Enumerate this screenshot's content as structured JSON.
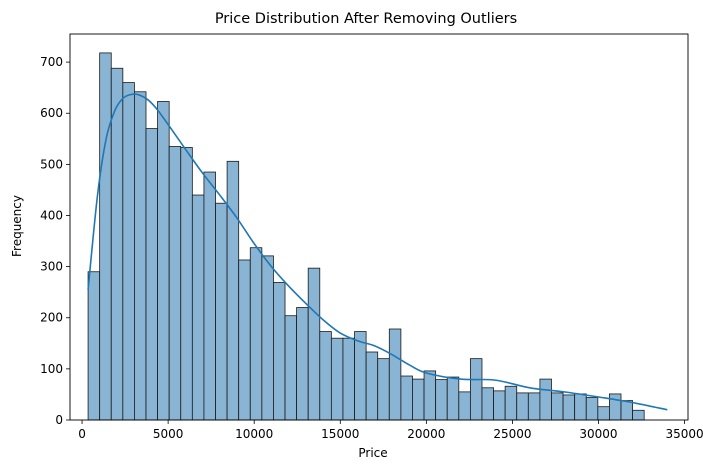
{
  "chart_data": {
    "type": "bar",
    "title": "Price Distribution After Removing Outliers",
    "xlabel": "Price",
    "ylabel": "Frequency",
    "xlim": [
      -700,
      35200
    ],
    "ylim": [
      0,
      755
    ],
    "x_ticks": [
      0,
      5000,
      10000,
      15000,
      20000,
      25000,
      30000,
      35000
    ],
    "y_ticks": [
      0,
      100,
      200,
      300,
      400,
      500,
      600,
      700
    ],
    "bin_start": 350,
    "bin_width": 673,
    "values": [
      290,
      718,
      688,
      660,
      642,
      570,
      623,
      535,
      533,
      440,
      485,
      424,
      506,
      313,
      337,
      321,
      269,
      204,
      220,
      297,
      173,
      160,
      160,
      173,
      133,
      120,
      178,
      86,
      80,
      96,
      79,
      84,
      55,
      120,
      63,
      57,
      66,
      53,
      53,
      80,
      53,
      49,
      51,
      44,
      26,
      51,
      38,
      19
    ],
    "kde": {
      "x": [
        350,
        900,
        1400,
        1900,
        2400,
        2900,
        3300,
        3800,
        4300,
        5000,
        6000,
        7000,
        8000,
        9000,
        10000,
        11000,
        12000,
        13000,
        14000,
        15000,
        16000,
        17000,
        18000,
        19000,
        20000,
        22000,
        24000,
        26000,
        28000,
        30000,
        32000,
        34000
      ],
      "y": [
        255,
        440,
        550,
        605,
        630,
        637,
        636,
        627,
        610,
        578,
        530,
        483,
        440,
        395,
        345,
        300,
        262,
        228,
        196,
        170,
        155,
        145,
        128,
        108,
        92,
        80,
        78,
        63,
        55,
        45,
        34,
        20
      ]
    },
    "colors": {
      "bar_fill": "#89b4d4",
      "bar_edge": "#1a1a1a",
      "kde": "#1f77b4"
    }
  }
}
